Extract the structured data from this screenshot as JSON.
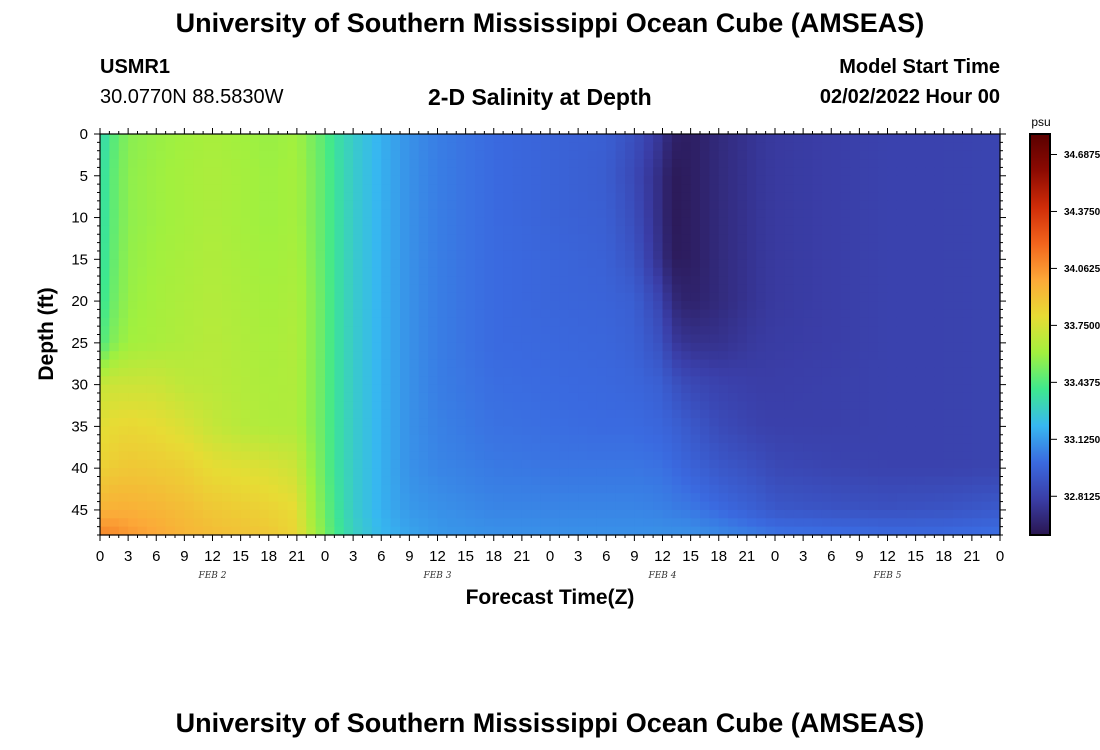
{
  "header": {
    "title": "University of Southern Mississippi Ocean Cube (AMSEAS)",
    "station": "USMR1",
    "coordinates": "30.0770N  88.5830W",
    "subtitle": "2-D Salinity at Depth",
    "model_start_label": "Model Start Time",
    "model_start_datetime": "02/02/2022 Hour 00"
  },
  "footer": {
    "title": "University of Southern Mississippi Ocean Cube (AMSEAS)"
  },
  "chart_data": {
    "type": "heatmap",
    "title": "2-D Salinity at Depth",
    "xlabel": "Forecast Time(Z)",
    "ylabel": "Depth (ft)",
    "x_tick_labels": [
      "0",
      "3",
      "6",
      "9",
      "12",
      "15",
      "18",
      "21",
      "0",
      "3",
      "6",
      "9",
      "12",
      "15",
      "18",
      "21",
      "0",
      "3",
      "6",
      "9",
      "12",
      "15",
      "18",
      "21",
      "0",
      "3",
      "6",
      "9",
      "12",
      "15",
      "18",
      "21",
      "0"
    ],
    "x_day_labels": [
      "FEB 2",
      "FEB 3",
      "FEB 4",
      "FEB 5"
    ],
    "xlim_hours": [
      0,
      96
    ],
    "y_ticks": [
      0,
      5,
      10,
      15,
      20,
      25,
      30,
      35,
      40,
      45
    ],
    "ylim": [
      0,
      48
    ],
    "y_inverted": true,
    "colorbar": {
      "unit": "psu",
      "tick_labels": [
        "34.6875",
        "34.3750",
        "34.0625",
        "33.7500",
        "33.4375",
        "33.1250",
        "32.8125"
      ],
      "range": [
        32.6,
        34.8
      ],
      "colors": [
        "#2a1650",
        "#3a3ea8",
        "#3a6ae0",
        "#37b8f0",
        "#3ee88e",
        "#a2f03e",
        "#e7dc34",
        "#fca838",
        "#f2641c",
        "#cf2c08",
        "#8c0a02",
        "#5a0000"
      ]
    },
    "x_hours": [
      0,
      1,
      3,
      6,
      9,
      12,
      15,
      18,
      21,
      22,
      24,
      25,
      27,
      30,
      33,
      36,
      42,
      48,
      54,
      57,
      60,
      61,
      63,
      66,
      70,
      72,
      78,
      84,
      90,
      96
    ],
    "depths_ft": [
      0,
      5,
      10,
      15,
      20,
      25,
      30,
      35,
      40,
      45,
      48
    ],
    "values": [
      [
        33.3,
        33.42,
        33.55,
        33.58,
        33.6,
        33.62,
        33.6,
        33.58,
        33.6,
        33.55,
        33.45,
        33.37,
        33.28,
        33.18,
        33.1,
        33.05,
        33.0,
        32.97,
        32.95,
        32.88,
        32.75,
        32.66,
        32.64,
        32.7,
        32.76,
        32.78,
        32.8,
        32.82,
        32.82,
        32.83
      ],
      [
        33.32,
        33.44,
        33.56,
        33.59,
        33.61,
        33.63,
        33.61,
        33.59,
        33.61,
        33.56,
        33.46,
        33.38,
        33.28,
        33.18,
        33.1,
        33.05,
        33.0,
        32.97,
        32.94,
        32.85,
        32.7,
        32.62,
        32.64,
        32.7,
        32.76,
        32.78,
        32.8,
        32.82,
        32.82,
        32.83
      ],
      [
        33.32,
        33.44,
        33.56,
        33.59,
        33.61,
        33.63,
        33.61,
        33.59,
        33.61,
        33.56,
        33.46,
        33.38,
        33.28,
        33.18,
        33.1,
        33.05,
        33.0,
        32.97,
        32.95,
        32.87,
        32.7,
        32.62,
        32.64,
        32.7,
        32.76,
        32.78,
        32.8,
        32.82,
        32.82,
        32.83
      ],
      [
        33.33,
        33.45,
        33.57,
        33.6,
        33.62,
        33.64,
        33.62,
        33.6,
        33.62,
        33.57,
        33.46,
        33.38,
        33.28,
        33.18,
        33.1,
        33.05,
        33.0,
        32.98,
        32.96,
        32.9,
        32.72,
        32.63,
        32.64,
        32.7,
        32.76,
        32.78,
        32.8,
        32.82,
        32.82,
        32.83
      ],
      [
        33.35,
        33.47,
        33.58,
        33.61,
        33.63,
        33.65,
        33.63,
        33.61,
        33.63,
        33.58,
        33.47,
        33.38,
        33.28,
        33.18,
        33.1,
        33.05,
        33.0,
        32.98,
        32.97,
        32.95,
        32.82,
        32.7,
        32.66,
        32.7,
        32.76,
        32.78,
        32.8,
        32.82,
        32.82,
        32.83
      ],
      [
        33.4,
        33.52,
        33.6,
        33.62,
        33.64,
        33.66,
        33.64,
        33.62,
        33.64,
        33.58,
        33.47,
        33.38,
        33.28,
        33.18,
        33.1,
        33.05,
        33.0,
        32.99,
        32.98,
        32.96,
        32.88,
        32.78,
        32.74,
        32.74,
        32.78,
        32.79,
        32.8,
        32.82,
        32.82,
        32.83
      ],
      [
        33.7,
        33.72,
        33.72,
        33.72,
        33.68,
        33.67,
        33.65,
        33.63,
        33.64,
        33.58,
        33.47,
        33.38,
        33.28,
        33.18,
        33.1,
        33.05,
        33.01,
        33.0,
        32.99,
        32.98,
        32.95,
        32.9,
        32.85,
        32.82,
        32.8,
        32.8,
        32.81,
        32.82,
        32.82,
        32.83
      ],
      [
        33.78,
        33.8,
        33.82,
        33.8,
        33.76,
        33.7,
        33.66,
        33.64,
        33.64,
        33.58,
        33.47,
        33.38,
        33.28,
        33.18,
        33.1,
        33.06,
        33.02,
        33.01,
        33.0,
        33.0,
        32.98,
        32.96,
        32.92,
        32.86,
        32.82,
        32.81,
        32.81,
        32.82,
        32.82,
        32.83
      ],
      [
        33.84,
        33.86,
        33.88,
        33.87,
        33.85,
        33.8,
        33.78,
        33.76,
        33.72,
        33.62,
        33.48,
        33.38,
        33.28,
        33.18,
        33.1,
        33.07,
        33.04,
        33.03,
        33.03,
        33.03,
        33.02,
        33.0,
        32.97,
        32.92,
        32.88,
        32.85,
        32.83,
        32.82,
        32.82,
        32.83
      ],
      [
        33.95,
        33.97,
        33.97,
        33.95,
        33.92,
        33.88,
        33.86,
        33.84,
        33.8,
        33.66,
        33.5,
        33.4,
        33.28,
        33.18,
        33.12,
        33.1,
        33.07,
        33.07,
        33.07,
        33.07,
        33.06,
        33.05,
        33.04,
        33.0,
        32.95,
        32.92,
        32.9,
        32.89,
        32.9,
        32.93
      ],
      [
        34.1,
        34.1,
        34.05,
        34.0,
        33.95,
        33.92,
        33.9,
        33.88,
        33.82,
        33.7,
        33.52,
        33.42,
        33.3,
        33.2,
        33.15,
        33.12,
        33.1,
        33.1,
        33.1,
        33.1,
        33.1,
        33.1,
        33.1,
        33.08,
        33.05,
        33.03,
        33.02,
        33.0,
        33.0,
        33.02
      ]
    ]
  }
}
